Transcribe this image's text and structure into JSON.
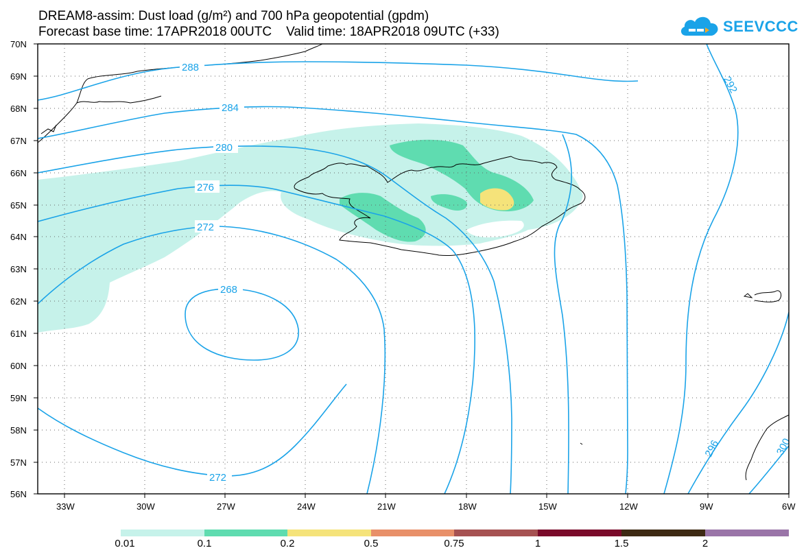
{
  "header": {
    "title_line1": "DREAM8-assim: Dust load (g/m²) and 700 hPa geopotential (gpdm)",
    "title_line2": "Forecast base time: 17APR2018 00UTC    Valid time: 18APR2018 09UTC (+33)"
  },
  "logo": {
    "text": "SEEVCCC",
    "icon": "cloud-logo-icon"
  },
  "map": {
    "lat_labels": [
      "70N",
      "69N",
      "68N",
      "67N",
      "66N",
      "65N",
      "64N",
      "63N",
      "62N",
      "61N",
      "60N",
      "59N",
      "58N",
      "57N",
      "56N"
    ],
    "lon_labels": [
      "33W",
      "30W",
      "27W",
      "24W",
      "21W",
      "18W",
      "15W",
      "12W",
      "9W",
      "6W"
    ],
    "contour_labels": [
      "288",
      "284",
      "280",
      "276",
      "272",
      "268",
      "272",
      "292",
      "296",
      "300"
    ],
    "colors": {
      "contour": "#1aa3e8",
      "dust_low": "#c6f2ea",
      "dust_mid": "#5fdcb0",
      "dust_high": "#f5e37a"
    }
  },
  "colorbar": {
    "labels": [
      "0.01",
      "0.1",
      "0.2",
      "0.5",
      "0.75",
      "1",
      "1.5",
      "2"
    ],
    "colors": [
      "#c6f2ea",
      "#5fdcb0",
      "#f5e37a",
      "#e89069",
      "#a65252",
      "#7a0a2a",
      "#3e2a14",
      "#9a75a8"
    ]
  }
}
